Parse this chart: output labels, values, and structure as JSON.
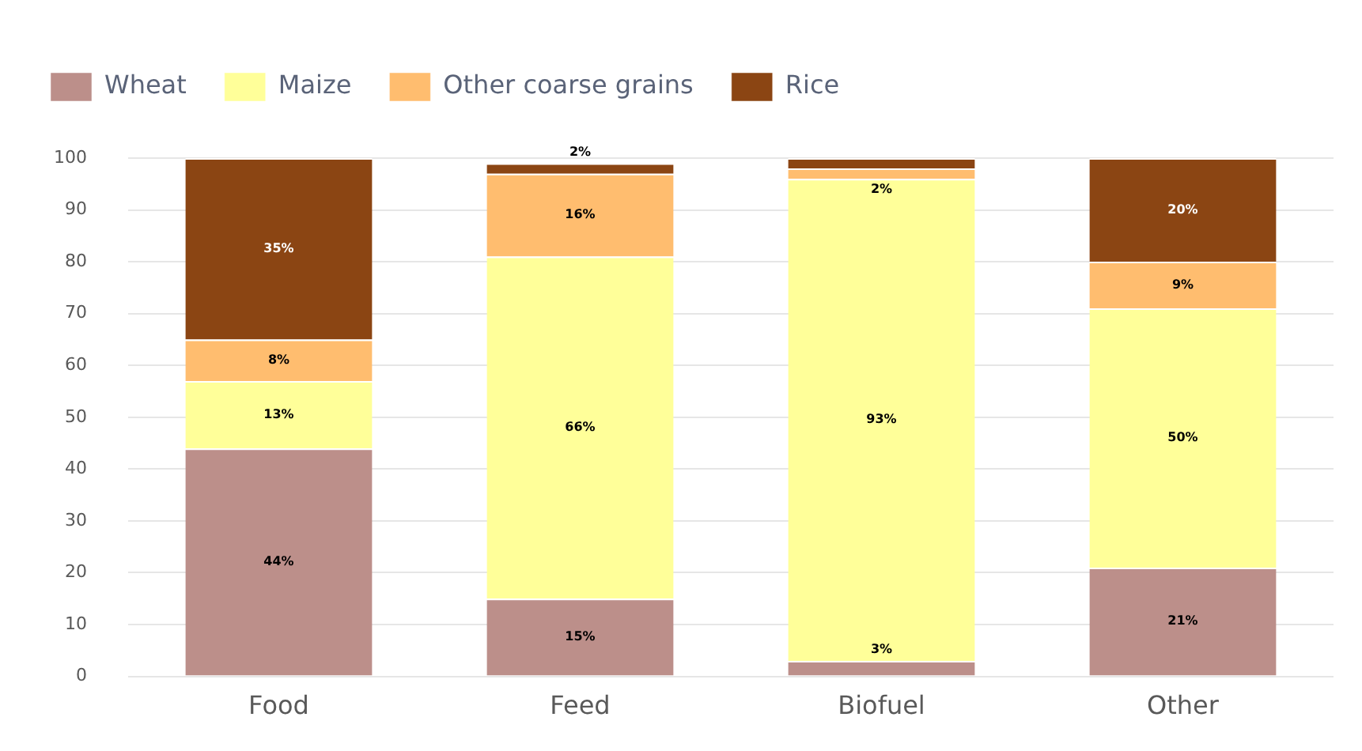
{
  "chart_data": {
    "type": "bar",
    "stacked": true,
    "categories": [
      "Food",
      "Feed",
      "Biofuel",
      "Other"
    ],
    "series": [
      {
        "name": "Wheat",
        "color": "#bc8f8a",
        "values": [
          44,
          15,
          3,
          21
        ],
        "value_labels": [
          "44%",
          "15%",
          "3%",
          "21%"
        ]
      },
      {
        "name": "Maize",
        "color": "#ffff99",
        "values": [
          13,
          66,
          93,
          50
        ],
        "value_labels": [
          "13%",
          "66%",
          "93%",
          "50%"
        ]
      },
      {
        "name": "Other coarse grains",
        "color": "#ffbd6f",
        "values": [
          8,
          16,
          2,
          9
        ],
        "value_labels": [
          "8%",
          "16%",
          "2%",
          "9%"
        ]
      },
      {
        "name": "Rice",
        "color": "#8b4513",
        "values": [
          35,
          2,
          2,
          20
        ],
        "value_labels": [
          "35%",
          "2%",
          null,
          "20%"
        ]
      }
    ],
    "ylim": [
      0,
      100
    ],
    "yticks": [
      0,
      10,
      20,
      30,
      40,
      50,
      60,
      70,
      80,
      90,
      100
    ],
    "grid": "y",
    "legend": "top left"
  }
}
